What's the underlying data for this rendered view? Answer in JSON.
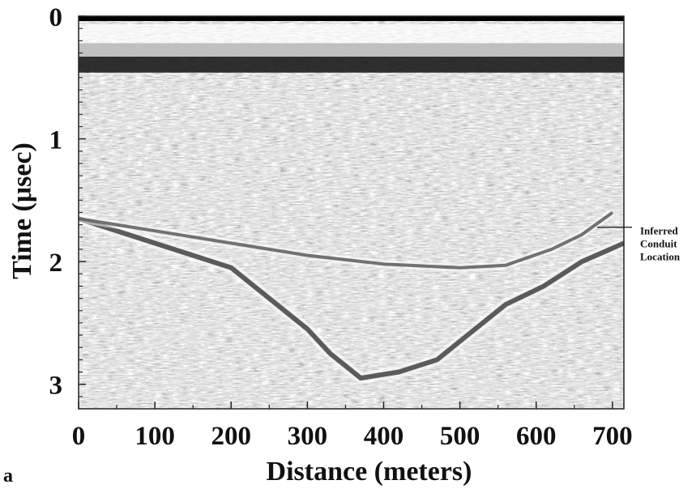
{
  "chart_data": {
    "type": "heatmap",
    "panel_label": "a",
    "xlabel": "Distance  (meters)",
    "ylabel": "Time  (μsec)",
    "xlim": [
      0,
      715
    ],
    "ylim": [
      0,
      3.2
    ],
    "y_inverted": true,
    "x_ticks": [
      0,
      100,
      200,
      300,
      400,
      500,
      600,
      700
    ],
    "x_tick_labels": [
      "0",
      "100",
      "200",
      "300",
      "400",
      "500",
      "600",
      "700"
    ],
    "y_ticks": [
      0,
      1,
      2,
      3
    ],
    "y_tick_labels": [
      "0",
      "1",
      "2",
      "3"
    ],
    "colormap": "grayscale radar amplitude",
    "reflectors": [
      {
        "description": "bed reflector",
        "points": [
          [
            0,
            1.65
          ],
          [
            100,
            1.85
          ],
          [
            200,
            2.05
          ],
          [
            300,
            2.55
          ],
          [
            330,
            2.75
          ],
          [
            370,
            2.95
          ],
          [
            420,
            2.9
          ],
          [
            470,
            2.8
          ],
          [
            510,
            2.6
          ],
          [
            560,
            2.35
          ],
          [
            610,
            2.2
          ],
          [
            660,
            2.0
          ],
          [
            715,
            1.85
          ]
        ]
      },
      {
        "description": "conduit reflector",
        "points": [
          [
            0,
            1.65
          ],
          [
            100,
            1.75
          ],
          [
            200,
            1.85
          ],
          [
            300,
            1.95
          ],
          [
            400,
            2.02
          ],
          [
            500,
            2.05
          ],
          [
            560,
            2.03
          ],
          [
            620,
            1.9
          ],
          [
            660,
            1.78
          ],
          [
            700,
            1.6
          ]
        ]
      }
    ],
    "annotation": {
      "lines": [
        "Inferred",
        "Conduit",
        "Location"
      ],
      "x": 680,
      "y": 1.72
    }
  }
}
